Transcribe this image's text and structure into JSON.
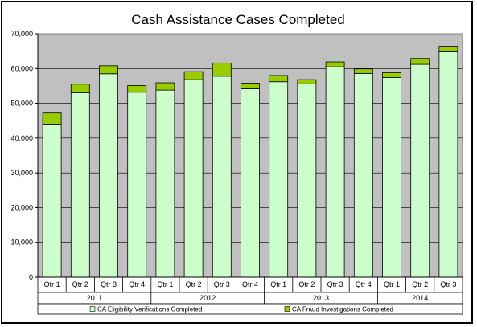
{
  "chart_data": {
    "type": "bar",
    "stacked": true,
    "title": "Cash Assistance Cases Completed",
    "xlabel": "",
    "ylabel": "",
    "ylim": [
      0,
      70000
    ],
    "yticks": [
      "0",
      "10,000",
      "20,000",
      "30,000",
      "40,000",
      "50,000",
      "60,000",
      "70,000"
    ],
    "categories": [
      "Qtr 1",
      "Qtr 2",
      "Qtr 3",
      "Qtr 4",
      "Qtr 1",
      "Qtr 2",
      "Qtr 3",
      "Qtr 4",
      "Qtr 1",
      "Qtr 2",
      "Qtr 3",
      "Qtr 4",
      "Qtr 1",
      "Qtr 2",
      "Qtr 3"
    ],
    "groups": [
      {
        "label": "2011",
        "count": 4
      },
      {
        "label": "2012",
        "count": 4
      },
      {
        "label": "2013",
        "count": 4
      },
      {
        "label": "2014",
        "count": 3
      }
    ],
    "series": [
      {
        "name": "CA Eligibility Verifications Completed",
        "color": "#ccffcc",
        "values": [
          44000,
          53000,
          58500,
          53200,
          53800,
          56800,
          57800,
          54200,
          56200,
          55600,
          60500,
          58600,
          57400,
          61200,
          64800
        ]
      },
      {
        "name": "CA Fraud Investigations Completed",
        "color": "#99cc00",
        "values": [
          3200,
          2500,
          2300,
          1900,
          2100,
          2300,
          3800,
          1600,
          1800,
          1200,
          1400,
          1300,
          1400,
          1700,
          1600
        ]
      }
    ],
    "plot_background": "#c0c0c0",
    "grid": true,
    "legend_position": "bottom"
  }
}
